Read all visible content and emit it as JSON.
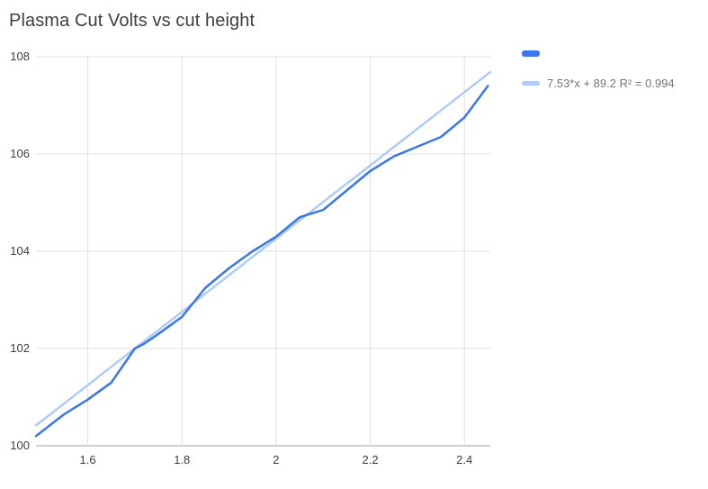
{
  "chart_data": {
    "type": "line",
    "title": "Plasma Cut Volts vs cut height",
    "x": [
      1.49,
      1.55,
      1.6,
      1.65,
      1.7,
      1.72,
      1.75,
      1.8,
      1.85,
      1.9,
      1.95,
      2.0,
      2.05,
      2.1,
      2.15,
      2.2,
      2.25,
      2.3,
      2.35,
      2.4,
      2.45
    ],
    "series": [
      {
        "values": [
          100.2,
          100.65,
          100.95,
          101.3,
          102.0,
          102.1,
          102.3,
          102.65,
          103.25,
          103.65,
          104.0,
          104.3,
          104.7,
          104.85,
          105.25,
          105.65,
          105.95,
          106.15,
          106.35,
          106.75,
          107.4
        ]
      }
    ],
    "trendline": {
      "slope": 7.53,
      "intercept": 89.2,
      "label": "7.53*x + 89.2 R² = 0.994"
    },
    "xlim": [
      1.49,
      2.455
    ],
    "ylim": [
      100,
      108
    ],
    "x_ticks": [
      1.6,
      1.8,
      2,
      2.2,
      2.4
    ],
    "x_tick_labels": [
      "1.6",
      "1.8",
      "2",
      "2.2",
      "2.4"
    ],
    "y_ticks": [
      100,
      102,
      104,
      106,
      108
    ],
    "y_tick_labels": [
      "100",
      "102",
      "104",
      "106",
      "108"
    ],
    "grid": true,
    "legend_position": "right",
    "colors": {
      "series": "#3b78e7",
      "trendline": "#aecbfa",
      "grid": "#e0e0e0",
      "axis": "#9e9e9e",
      "tick_text": "#3c4043",
      "title_text": "#3c4043",
      "legend_text": "#757575"
    }
  }
}
